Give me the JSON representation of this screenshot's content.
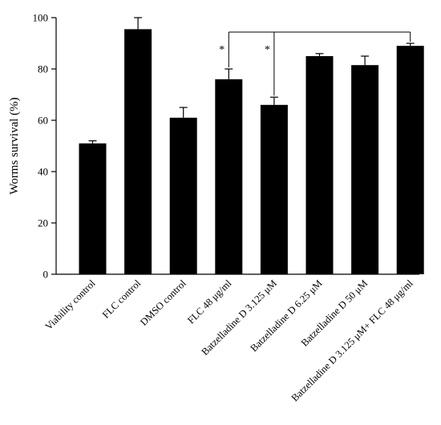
{
  "chart_data": {
    "type": "bar",
    "ylabel": "Worms survival (%)",
    "xlabel": "",
    "ylim": [
      0,
      100
    ],
    "yticks": [
      0,
      20,
      40,
      60,
      80,
      100
    ],
    "categories": [
      "Viability control",
      "FLC control",
      "DMSO control",
      "FLC 48 μg/ml",
      "Batzelladine D 3.125 μM",
      "Batzelladine D 6.25 μM",
      "Batzelladine D 50 μM",
      "Batzelladine D 3.125 μM+ FLC 48 μg/ml"
    ],
    "values": [
      51,
      95.5,
      61,
      76,
      66,
      85,
      81.5,
      89
    ],
    "errors": [
      1,
      4.5,
      4,
      4,
      3,
      1,
      3.5,
      1
    ],
    "bar_color": "#000000",
    "grid": false,
    "significance": [
      {
        "from": 7,
        "to": 3,
        "label": "*"
      },
      {
        "from": 7,
        "to": 4,
        "label": "*"
      }
    ]
  }
}
